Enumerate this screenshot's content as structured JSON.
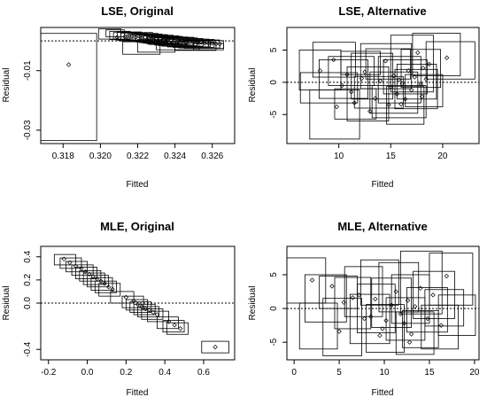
{
  "chart_data": [
    {
      "type": "scatter",
      "title": "LSE, Original",
      "xlabel": "Fitted",
      "ylabel": "Residual",
      "xlim": [
        0.3168,
        0.3272
      ],
      "ylim": [
        -0.0345,
        0.0045
      ],
      "xticks": [
        0.318,
        0.32,
        0.322,
        0.324,
        0.326
      ],
      "xtick_labels": [
        "0.318",
        "0.320",
        "0.322",
        "0.324",
        "0.326"
      ],
      "yticks": [
        -0.03,
        -0.01
      ],
      "ytick_labels": [
        "-0.03",
        "-0.01"
      ],
      "reference_line_y": 0,
      "points": [
        [
          0.3183,
          -0.008
        ],
        [
          0.3209,
          0.0012
        ],
        [
          0.3213,
          0.0014
        ],
        [
          0.3217,
          0.0016
        ],
        [
          0.3219,
          0.0012
        ],
        [
          0.3221,
          0.0015
        ],
        [
          0.3222,
          0.001
        ],
        [
          0.3224,
          0.0012
        ],
        [
          0.3226,
          0.0008
        ],
        [
          0.3228,
          0.0011
        ],
        [
          0.323,
          0.0006
        ],
        [
          0.3232,
          0.0007
        ],
        [
          0.3234,
          0.0003
        ],
        [
          0.3236,
          0.0004
        ],
        [
          0.3238,
          0.0001
        ],
        [
          0.324,
          0.0002
        ],
        [
          0.3242,
          -0.0002
        ],
        [
          0.3244,
          -0.0001
        ],
        [
          0.3246,
          -0.0005
        ],
        [
          0.3248,
          -0.0003
        ],
        [
          0.325,
          -0.0006
        ],
        [
          0.3252,
          -0.0007
        ],
        [
          0.3254,
          -0.0005
        ],
        [
          0.3256,
          -0.0008
        ],
        [
          0.3258,
          -0.0009
        ],
        [
          0.326,
          -0.0008
        ],
        [
          0.3262,
          -0.001
        ],
        [
          0.3264,
          -0.0011
        ],
        [
          0.3215,
          0.0009
        ],
        [
          0.3225,
          0.0004
        ],
        [
          0.3235,
          -0.0002
        ]
      ],
      "boxes": [
        [
          0.3168,
          0.3198,
          -0.0335,
          0.0025
        ],
        [
          0.3199,
          0.3211,
          0.0006,
          0.004
        ],
        [
          0.3203,
          0.3213,
          0.0014,
          0.0037
        ],
        [
          0.3205,
          0.3216,
          0.0004,
          0.0032
        ],
        [
          0.3207,
          0.3219,
          0.0006,
          0.0028
        ],
        [
          0.3209,
          0.3222,
          0.0002,
          0.003
        ],
        [
          0.3211,
          0.3225,
          -0.0001,
          0.0026
        ],
        [
          0.3213,
          0.3228,
          0.0,
          0.0028
        ],
        [
          0.3215,
          0.3231,
          -0.0003,
          0.0025
        ],
        [
          0.3217,
          0.3233,
          -0.0001,
          0.0023
        ],
        [
          0.3219,
          0.3236,
          -0.0004,
          0.0021
        ],
        [
          0.3221,
          0.3239,
          -0.0006,
          0.0019
        ],
        [
          0.3223,
          0.3242,
          -0.0008,
          0.0017
        ],
        [
          0.3225,
          0.3244,
          -0.001,
          0.0015
        ],
        [
          0.3227,
          0.3247,
          -0.0012,
          0.0013
        ],
        [
          0.3229,
          0.325,
          -0.0014,
          0.0012
        ],
        [
          0.3231,
          0.3252,
          -0.0016,
          0.001
        ],
        [
          0.3233,
          0.3255,
          -0.0018,
          0.0008
        ],
        [
          0.3236,
          0.3258,
          -0.002,
          0.0006
        ],
        [
          0.3239,
          0.3261,
          -0.0022,
          0.0005
        ],
        [
          0.3242,
          0.3264,
          -0.0024,
          0.0003
        ],
        [
          0.3245,
          0.3266,
          -0.0025,
          0.0001
        ],
        [
          0.3212,
          0.3232,
          -0.0045,
          -0.0003
        ],
        [
          0.322,
          0.324,
          -0.0038,
          0.0005
        ],
        [
          0.323,
          0.3253,
          -0.003,
          -0.0002
        ],
        [
          0.324,
          0.3262,
          -0.0032,
          -0.0006
        ],
        [
          0.325,
          0.3266,
          -0.003,
          -0.0008
        ],
        [
          0.3214,
          0.3236,
          0.0002,
          0.002
        ],
        [
          0.3226,
          0.3246,
          -0.0012,
          0.001
        ],
        [
          0.3236,
          0.3259,
          -0.002,
          -0.0001
        ]
      ]
    },
    {
      "type": "scatter",
      "title": "LSE, Alternative",
      "xlabel": "Fitted",
      "ylabel": "Residual",
      "xlim": [
        5.0,
        23.5
      ],
      "ylim": [
        -9.5,
        8.5
      ],
      "xticks": [
        10,
        15,
        20
      ],
      "xtick_labels": [
        "10",
        "15",
        "20"
      ],
      "yticks": [
        -5,
        0,
        5
      ],
      "ytick_labels": [
        "-5",
        "0",
        "5"
      ],
      "reference_line_y": 0,
      "points": [
        [
          8.2,
          1.8
        ],
        [
          9.5,
          3.5
        ],
        [
          10.3,
          -0.5
        ],
        [
          10.8,
          1.2
        ],
        [
          11.2,
          -1.5
        ],
        [
          11.5,
          -3.2
        ],
        [
          12.2,
          0.6
        ],
        [
          12.5,
          1.6
        ],
        [
          13.5,
          -2.5
        ],
        [
          14.0,
          0.2
        ],
        [
          14.5,
          3.3
        ],
        [
          15.0,
          -0.8
        ],
        [
          15.3,
          1.0
        ],
        [
          15.6,
          -1.8
        ],
        [
          15.8,
          0.4
        ],
        [
          16.1,
          -0.2
        ],
        [
          16.4,
          -2.6
        ],
        [
          16.7,
          1.8
        ],
        [
          17.0,
          -1.2
        ],
        [
          17.3,
          0.8
        ],
        [
          17.6,
          4.6
        ],
        [
          17.9,
          -0.3
        ],
        [
          18.1,
          2.2
        ],
        [
          18.4,
          0.5
        ],
        [
          18.7,
          2.8
        ],
        [
          20.4,
          3.8
        ],
        [
          9.8,
          -3.8
        ],
        [
          13.0,
          -4.5
        ],
        [
          14.8,
          -3.5
        ],
        [
          16.0,
          -3.4
        ],
        [
          18.0,
          -2.2
        ]
      ],
      "boxes": [
        [
          6.2,
          10.2,
          -1.2,
          5.0
        ],
        [
          7.5,
          11.6,
          0.8,
          6.2
        ],
        [
          8.1,
          12.8,
          -2.5,
          3.5
        ],
        [
          9.0,
          13.4,
          -0.5,
          4.0
        ],
        [
          6.3,
          11.8,
          -3.2,
          1.5
        ],
        [
          7.2,
          12.0,
          -8.8,
          -1.2
        ],
        [
          9.6,
          13.6,
          -5.7,
          -1.0
        ],
        [
          10.8,
          14.8,
          -6.0,
          2.4
        ],
        [
          11.2,
          15.2,
          -2.6,
          4.5
        ],
        [
          12.1,
          17.0,
          -1.0,
          6.0
        ],
        [
          13.0,
          17.6,
          -4.8,
          1.6
        ],
        [
          13.8,
          17.9,
          -3.2,
          4.0
        ],
        [
          14.6,
          18.2,
          -6.5,
          -0.6
        ],
        [
          15.0,
          19.1,
          -1.5,
          7.3
        ],
        [
          15.4,
          19.5,
          -4.1,
          2.0
        ],
        [
          16.0,
          19.8,
          -0.8,
          5.1
        ],
        [
          16.4,
          20.0,
          -3.8,
          1.2
        ],
        [
          17.1,
          21.7,
          1.0,
          7.6
        ],
        [
          18.4,
          23.1,
          0.5,
          6.3
        ],
        [
          14.3,
          18.5,
          -1.8,
          3.5
        ],
        [
          12.6,
          16.9,
          0.5,
          5.2
        ],
        [
          10.2,
          14.0,
          1.2,
          4.8
        ],
        [
          11.5,
          16.2,
          -4.0,
          0.9
        ],
        [
          15.6,
          19.4,
          -2.6,
          2.8
        ],
        [
          13.2,
          18.4,
          -5.5,
          -0.5
        ]
      ]
    },
    {
      "type": "scatter",
      "title": "MLE, Original",
      "xlabel": "Fitted",
      "ylabel": "Residual",
      "xlim": [
        -0.24,
        0.76
      ],
      "ylim": [
        -0.49,
        0.49
      ],
      "xticks": [
        -0.2,
        0.0,
        0.2,
        0.4,
        0.6
      ],
      "xtick_labels": [
        "-0.2",
        "0.0",
        "0.2",
        "0.4",
        "0.6"
      ],
      "yticks": [
        -0.4,
        0.0,
        0.2,
        0.4
      ],
      "ytick_labels": [
        "-0.4",
        "0.0",
        "0.2",
        "0.4"
      ],
      "reference_line_y": 0,
      "points": [
        [
          -0.12,
          0.38
        ],
        [
          -0.09,
          0.35
        ],
        [
          -0.06,
          0.32
        ],
        [
          -0.03,
          0.3
        ],
        [
          -0.01,
          0.27
        ],
        [
          0.01,
          0.25
        ],
        [
          0.03,
          0.23
        ],
        [
          0.05,
          0.21
        ],
        [
          0.07,
          0.19
        ],
        [
          0.09,
          0.17
        ],
        [
          0.11,
          0.14
        ],
        [
          0.13,
          0.12
        ],
        [
          0.2,
          0.05
        ],
        [
          0.24,
          0.02
        ],
        [
          0.26,
          -0.01
        ],
        [
          0.28,
          -0.03
        ],
        [
          0.3,
          -0.05
        ],
        [
          0.32,
          -0.06
        ],
        [
          0.34,
          -0.08
        ],
        [
          0.36,
          -0.1
        ],
        [
          0.42,
          -0.16
        ],
        [
          0.45,
          -0.19
        ],
        [
          0.48,
          -0.22
        ],
        [
          0.66,
          -0.38
        ]
      ],
      "boxes": [
        [
          -0.17,
          -0.06,
          0.33,
          0.42
        ],
        [
          -0.14,
          -0.03,
          0.3,
          0.39
        ],
        [
          -0.11,
          0.0,
          0.27,
          0.36
        ],
        [
          -0.08,
          0.03,
          0.24,
          0.33
        ],
        [
          -0.06,
          0.05,
          0.21,
          0.31
        ],
        [
          -0.04,
          0.07,
          0.19,
          0.28
        ],
        [
          -0.02,
          0.09,
          0.16,
          0.26
        ],
        [
          0.0,
          0.11,
          0.14,
          0.24
        ],
        [
          0.02,
          0.13,
          0.11,
          0.22
        ],
        [
          0.04,
          0.15,
          0.09,
          0.19
        ],
        [
          0.06,
          0.17,
          0.06,
          0.17
        ],
        [
          0.12,
          0.24,
          0.0,
          0.1
        ],
        [
          0.18,
          0.29,
          -0.04,
          0.06
        ],
        [
          0.2,
          0.31,
          -0.06,
          0.03
        ],
        [
          0.22,
          0.33,
          -0.08,
          0.01
        ],
        [
          0.24,
          0.35,
          -0.1,
          -0.01
        ],
        [
          0.26,
          0.37,
          -0.12,
          -0.03
        ],
        [
          0.28,
          0.39,
          -0.14,
          -0.05
        ],
        [
          0.31,
          0.42,
          -0.16,
          -0.07
        ],
        [
          0.36,
          0.47,
          -0.22,
          -0.12
        ],
        [
          0.39,
          0.5,
          -0.25,
          -0.15
        ],
        [
          0.41,
          0.52,
          -0.27,
          -0.17
        ],
        [
          0.59,
          0.73,
          -0.43,
          -0.33
        ]
      ]
    },
    {
      "type": "scatter",
      "title": "MLE, Alternative",
      "xlabel": "Fitted",
      "ylabel": "Residual",
      "xlim": [
        -0.8,
        20.5
      ],
      "ylim": [
        -7.6,
        9.2
      ],
      "xticks": [
        0,
        5,
        10,
        15,
        20
      ],
      "xtick_labels": [
        "0",
        "5",
        "10",
        "15",
        "20"
      ],
      "yticks": [
        -5,
        0,
        5
      ],
      "ytick_labels": [
        "-5",
        "0",
        "5"
      ],
      "reference_line_y": 0,
      "points": [
        [
          2.0,
          4.2
        ],
        [
          4.2,
          3.3
        ],
        [
          5.0,
          -3.4
        ],
        [
          5.5,
          0.9
        ],
        [
          6.5,
          1.6
        ],
        [
          7.2,
          2.0
        ],
        [
          7.8,
          -1.5
        ],
        [
          8.5,
          -1.2
        ],
        [
          9.0,
          1.4
        ],
        [
          9.5,
          -4.0
        ],
        [
          10.2,
          -1.8
        ],
        [
          10.8,
          0.5
        ],
        [
          11.3,
          2.5
        ],
        [
          11.8,
          -0.8
        ],
        [
          12.2,
          -2.2
        ],
        [
          12.6,
          1.2
        ],
        [
          13.0,
          -3.8
        ],
        [
          13.4,
          0.3
        ],
        [
          14.0,
          3.0
        ],
        [
          14.8,
          -1.5
        ],
        [
          15.4,
          2.0
        ],
        [
          16.3,
          -2.5
        ],
        [
          16.9,
          4.8
        ],
        [
          9.8,
          -3.0
        ],
        [
          12.8,
          -5.0
        ]
      ],
      "boxes": [
        [
          -0.8,
          3.5,
          0.8,
          7.5
        ],
        [
          1.2,
          5.8,
          -2.0,
          5.0
        ],
        [
          0.6,
          4.8,
          -6.0,
          0.8
        ],
        [
          3.2,
          7.5,
          -7.0,
          1.5
        ],
        [
          4.5,
          8.5,
          -3.0,
          4.6
        ],
        [
          5.6,
          9.8,
          -1.2,
          6.2
        ],
        [
          6.2,
          10.6,
          -5.2,
          2.1
        ],
        [
          7.0,
          11.2,
          -3.6,
          3.6
        ],
        [
          8.0,
          12.2,
          -6.5,
          0.6
        ],
        [
          8.6,
          13.0,
          -2.8,
          4.5
        ],
        [
          9.4,
          13.8,
          -0.5,
          6.8
        ],
        [
          10.2,
          14.5,
          -4.7,
          1.6
        ],
        [
          10.8,
          15.0,
          -2.2,
          5.0
        ],
        [
          11.3,
          15.5,
          -6.8,
          -0.5
        ],
        [
          11.8,
          16.4,
          -0.8,
          8.5
        ],
        [
          12.5,
          17.0,
          -3.5,
          3.1
        ],
        [
          13.2,
          17.8,
          -1.5,
          5.5
        ],
        [
          14.1,
          18.2,
          -6.0,
          0.5
        ],
        [
          15.0,
          19.8,
          0.5,
          8.2
        ],
        [
          16.0,
          20.1,
          -4.0,
          2.0
        ],
        [
          12.0,
          16.0,
          -5.8,
          -0.3
        ],
        [
          7.4,
          11.6,
          0.5,
          7.2
        ],
        [
          2.8,
          7.0,
          0.0,
          4.8
        ],
        [
          14.5,
          18.8,
          -2.6,
          2.8
        ]
      ]
    }
  ]
}
